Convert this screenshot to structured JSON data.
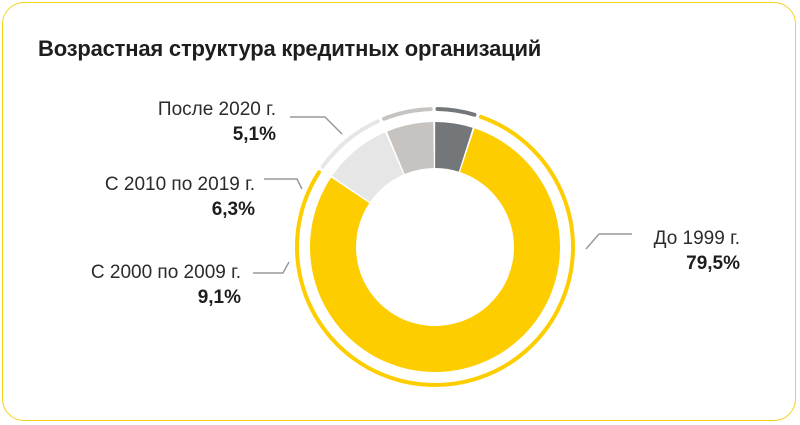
{
  "title": "Возрастная структура кредитных организаций",
  "colors": {
    "before_1999": "#fecd00",
    "y2000_2009": "#e6e6e6",
    "y2010_2019": "#c6c3c0",
    "after_2020": "#737779",
    "card_border": "#f5d21c",
    "leader": "#9a9a9a"
  },
  "chart_data": {
    "type": "pie",
    "variant": "donut",
    "title": "Возрастная структура кредитных организаций",
    "categories": [
      "До 1999 г.",
      "С 2000 по 2009 г.",
      "С 2010 по 2019 г.",
      "После 2020 г."
    ],
    "values": [
      79.5,
      9.1,
      6.3,
      5.1
    ],
    "value_labels": [
      "79,5%",
      "9,1%",
      "6,3%",
      "5,1%"
    ],
    "unit": "%"
  }
}
